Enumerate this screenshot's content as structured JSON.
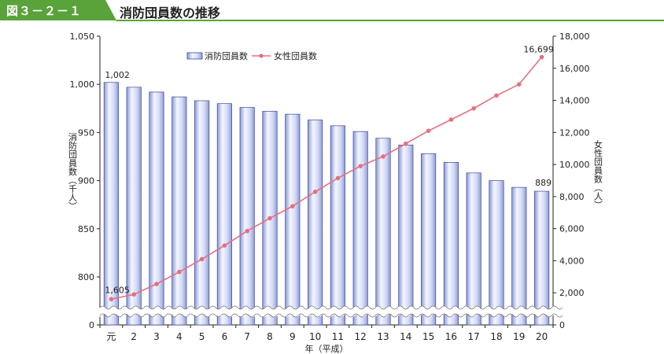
{
  "header": {
    "figure_label": "図３－２－１",
    "title": "消防団員数の推移"
  },
  "chart_data": {
    "type": "bar+line",
    "xlabel": "年（平成）",
    "categories": [
      "元",
      "2",
      "3",
      "4",
      "5",
      "6",
      "7",
      "8",
      "9",
      "10",
      "11",
      "12",
      "13",
      "14",
      "15",
      "16",
      "17",
      "18",
      "19",
      "20"
    ],
    "y_left": {
      "label": "消防団員数（千人）",
      "ticks": [
        "0",
        "800",
        "850",
        "900",
        "950",
        "1,000",
        "1,050"
      ],
      "range": [
        800,
        1050
      ],
      "axis_break": true
    },
    "y_right": {
      "label": "女性団員数（人）",
      "ticks": [
        "0",
        "2,000",
        "4,000",
        "6,000",
        "8,000",
        "10,000",
        "12,000",
        "14,000",
        "16,000",
        "18,000"
      ],
      "range": [
        0,
        18000
      ]
    },
    "series": [
      {
        "name": "消防団員数",
        "kind": "bar",
        "axis": "left",
        "values": [
          1002,
          997,
          992,
          987,
          983,
          980,
          976,
          972,
          969,
          963,
          957,
          951,
          944,
          937,
          928,
          919,
          908,
          900,
          893,
          889
        ],
        "color": "#c5cdf2"
      },
      {
        "name": "女性団員数",
        "kind": "line",
        "axis": "right",
        "values": [
          1605,
          1900,
          2550,
          3300,
          4100,
          4950,
          5850,
          6650,
          7400,
          8300,
          9150,
          9900,
          10500,
          11300,
          12100,
          12800,
          13500,
          14300,
          15000,
          16699
        ],
        "color": "#e5707f"
      }
    ],
    "annotations": [
      {
        "label": "1,002"
      },
      {
        "label": "889"
      },
      {
        "label": "1,605"
      },
      {
        "label": "16,699"
      }
    ],
    "legend_position": "top-left"
  }
}
